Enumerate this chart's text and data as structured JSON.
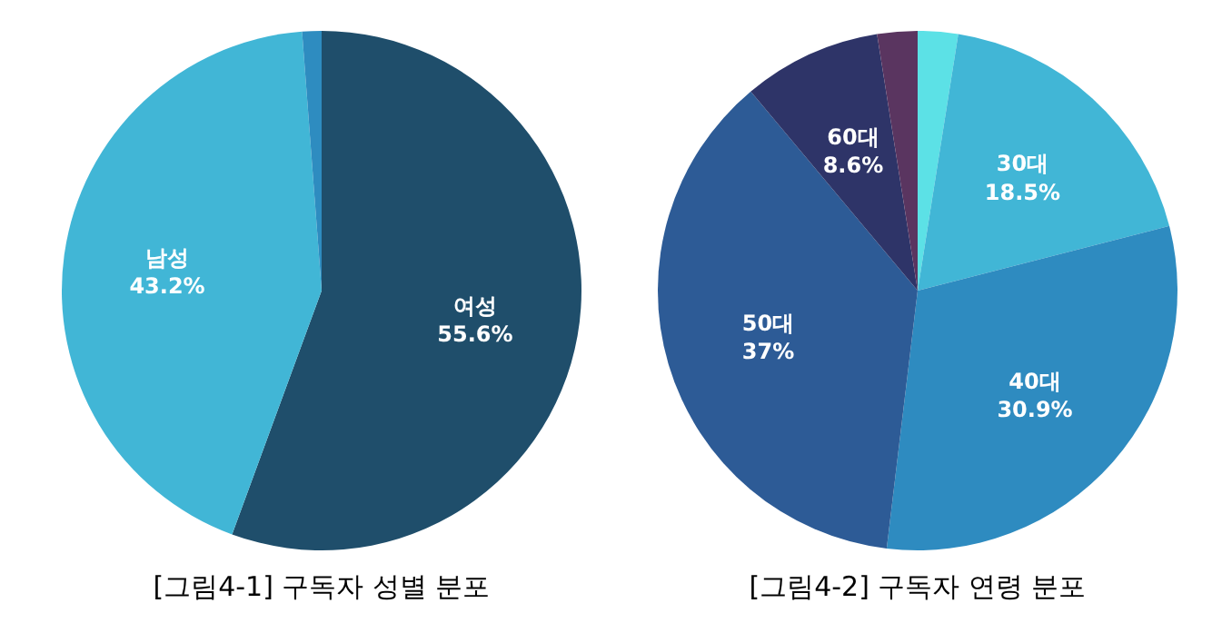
{
  "chart_data": [
    {
      "type": "pie",
      "title": "[그림4-1] 구독자 성별 분포",
      "categories": [
        "여성",
        "남성",
        null
      ],
      "values": [
        55.6,
        43.2,
        1.2
      ],
      "value_labels": [
        "55.6%",
        "43.2%",
        null
      ],
      "colors": [
        "#1f4e6b",
        "#41b6d6",
        "#2e8cc0"
      ],
      "legend": false
    },
    {
      "type": "pie",
      "title": "[그림4-2] 구독자 연령 분포",
      "categories": [
        null,
        "30대",
        "40대",
        "50대",
        "60대",
        null
      ],
      "values": [
        2.5,
        18.5,
        30.9,
        37,
        8.6,
        2.5
      ],
      "value_labels": [
        null,
        "18.5%",
        "30.9%",
        "37%",
        "8.6%",
        null
      ],
      "colors": [
        "#5ce1e6",
        "#41b6d6",
        "#2e8bc0",
        "#2d5b96",
        "#2e3468",
        "#5a3560"
      ],
      "legend": false
    }
  ]
}
